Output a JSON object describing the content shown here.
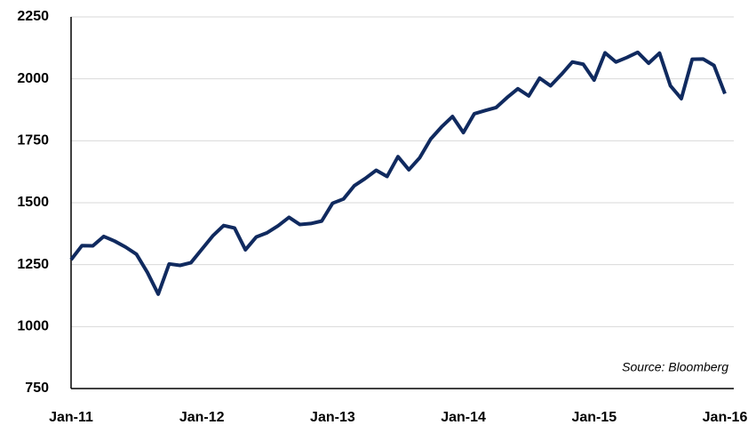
{
  "chart_data": {
    "type": "line",
    "categories": [
      "Jan-11",
      null,
      null,
      null,
      null,
      null,
      null,
      null,
      null,
      null,
      null,
      null,
      "Jan-12",
      null,
      null,
      null,
      null,
      null,
      null,
      null,
      null,
      null,
      null,
      null,
      "Jan-13",
      null,
      null,
      null,
      null,
      null,
      null,
      null,
      null,
      null,
      null,
      null,
      "Jan-14",
      null,
      null,
      null,
      null,
      null,
      null,
      null,
      null,
      null,
      null,
      null,
      "Jan-15",
      null,
      null,
      null,
      null,
      null,
      null,
      null,
      null,
      null,
      null,
      null,
      "Jan-16"
    ],
    "series": [
      {
        "color": "#102a5f",
        "values": [
          1270,
          1327,
          1326,
          1364,
          1345,
          1321,
          1292,
          1219,
          1131,
          1253,
          1247,
          1258,
          1312,
          1366,
          1408,
          1398,
          1310,
          1362,
          1379,
          1407,
          1441,
          1412,
          1416,
          1426,
          1498,
          1515,
          1569,
          1598,
          1631,
          1606,
          1686,
          1633,
          1682,
          1757,
          1806,
          1848,
          1783,
          1859,
          1872,
          1884,
          1924,
          1960,
          1931,
          2003,
          1972,
          2018,
          2068,
          2059,
          1995,
          2105,
          2068,
          2086,
          2107,
          2063,
          2104,
          1972,
          1920,
          2079,
          2080,
          2054,
          1940
        ]
      }
    ],
    "ylim": [
      750,
      2250
    ],
    "yticks": [
      750,
      1000,
      1250,
      1500,
      1750,
      2000,
      2250
    ],
    "grid": true,
    "annotation": "Source: Bloomberg"
  }
}
